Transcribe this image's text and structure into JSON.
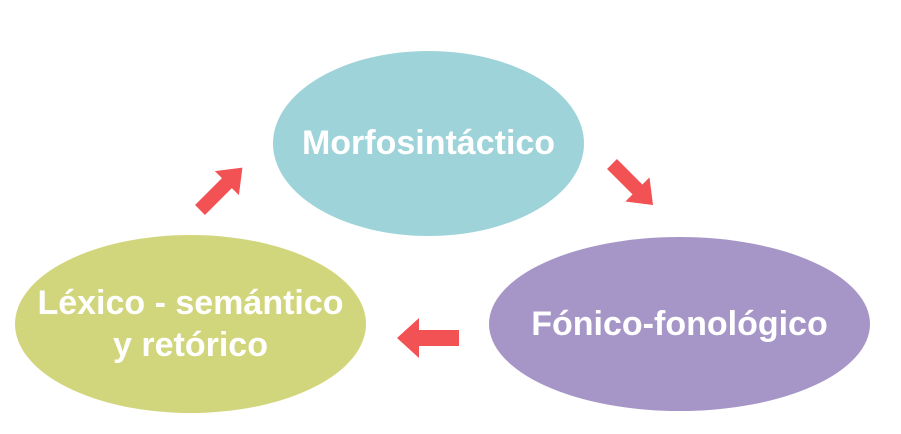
{
  "diagram": {
    "type": "cycle",
    "nodes": [
      {
        "id": "morfosintactico",
        "lines": [
          "Morfosintáctico"
        ],
        "color": "#9ed3da"
      },
      {
        "id": "fonico",
        "lines": [
          "Fónico-fonológico"
        ],
        "color": "#a696c7"
      },
      {
        "id": "lexico",
        "lines": [
          "Léxico - semántico",
          "y retórico"
        ],
        "color": "#d1d67c"
      }
    ],
    "edges": [
      {
        "from": "morfosintactico",
        "to": "fonico"
      },
      {
        "from": "fonico",
        "to": "lexico"
      },
      {
        "from": "lexico",
        "to": "morfosintactico"
      }
    ],
    "arrow_color": "#f25253"
  }
}
